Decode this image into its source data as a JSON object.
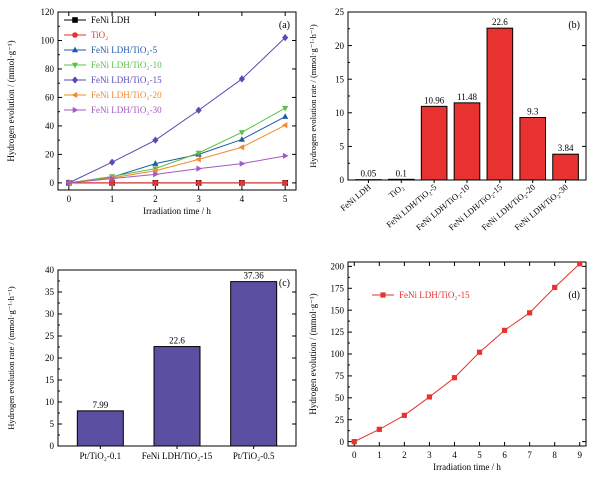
{
  "chart_data": [
    {
      "panel": "(a)",
      "type": "line",
      "xlabel": "Irradiation time / h",
      "ylabel": "Hydrogen evolution / (mmol·g⁻¹)",
      "x": [
        0,
        1,
        2,
        3,
        4,
        5
      ],
      "xticks": [
        "0",
        "1",
        "2",
        "3",
        "4",
        "5"
      ],
      "yticks": [
        "0",
        "20",
        "40",
        "60",
        "80",
        "100",
        "120"
      ],
      "xlim": [
        -0.25,
        5.25
      ],
      "ylim": [
        -5,
        120
      ],
      "legend_position": "top-left",
      "series": [
        {
          "name": "FeNi LDH",
          "marker": "square",
          "color": "#000000",
          "values": [
            0,
            0,
            0,
            0,
            0,
            0
          ]
        },
        {
          "name": "TiO₂",
          "marker": "circle",
          "color": "#e8322f",
          "values": [
            0,
            0,
            0,
            0,
            0,
            0
          ]
        },
        {
          "name": "FeNi LDH/TiO₂-5",
          "marker": "triangle-up",
          "color": "#1d5aa8",
          "values": [
            0,
            4,
            13.5,
            20,
            30.5,
            46.5
          ]
        },
        {
          "name": "FeNi LDH/TiO₂-10",
          "marker": "triangle-down",
          "color": "#5bc14a",
          "values": [
            0,
            4.5,
            10,
            21,
            35.5,
            52.5
          ]
        },
        {
          "name": "FeNi LDH/TiO₂-15",
          "marker": "diamond",
          "color": "#5a4bb3",
          "values": [
            0,
            14.5,
            30,
            51,
            73,
            102
          ]
        },
        {
          "name": "FeNi LDH/TiO₂-20",
          "marker": "triangle-left",
          "color": "#f28a2e",
          "values": [
            0,
            3.5,
            8.5,
            16.5,
            25,
            40.5
          ]
        },
        {
          "name": "FeNi LDH/TiO₂-30",
          "marker": "triangle-right",
          "color": "#a259c4",
          "values": [
            0,
            3,
            6,
            10,
            13.5,
            19
          ]
        }
      ]
    },
    {
      "panel": "(b)",
      "type": "bar",
      "ylabel": "Hydrogen evolution rate / (mmol·g⁻¹·h⁻¹)",
      "categories": [
        "FeNi LDH",
        "TiO₂",
        "FeNi LDH/TiO₂-5",
        "FeNi LDH/TiO₂-10",
        "FeNi LDH/TiO₂-15",
        "FeNi LDH/TiO₂-20",
        "FeNi LDH/TiO₂-30"
      ],
      "values": [
        0.05,
        0.1,
        10.96,
        11.48,
        22.6,
        9.3,
        3.84
      ],
      "labels": [
        "0.05",
        "0.1",
        "10.96",
        "11.48",
        "22.6",
        "9.3",
        "3.84"
      ],
      "yticks": [
        "0",
        "5",
        "10",
        "15",
        "20",
        "25"
      ],
      "ylim": [
        0,
        25
      ],
      "bar_color": "#e8322f"
    },
    {
      "panel": "(c)",
      "type": "bar",
      "ylabel": "Hydrogen evolution rate / (mmol·g⁻¹·h⁻¹)",
      "categories": [
        "Pt/TiO₂-0.1",
        "FeNi LDH/TiO₂-15",
        "Pt/TiO₂-0.5"
      ],
      "values": [
        7.99,
        22.6,
        37.36
      ],
      "labels": [
        "7.99",
        "22.6",
        "37.36"
      ],
      "yticks": [
        "0",
        "5",
        "10",
        "15",
        "20",
        "25",
        "30",
        "35",
        "40"
      ],
      "ylim": [
        0,
        40
      ],
      "bar_color": "#5a4fa0"
    },
    {
      "panel": "(d)",
      "type": "line",
      "xlabel": "Irradiation time / h",
      "ylabel": "Hydrogen evolution / (mmol·g⁻¹)",
      "x": [
        0,
        1,
        2,
        3,
        4,
        5,
        6,
        7,
        8,
        9
      ],
      "xticks": [
        "0",
        "1",
        "2",
        "3",
        "4",
        "5",
        "6",
        "7",
        "8",
        "9"
      ],
      "yticks": [
        "0",
        "25",
        "50",
        "75",
        "100",
        "125",
        "150",
        "175",
        "200"
      ],
      "xlim": [
        -0.25,
        9.25
      ],
      "ylim": [
        -5,
        205
      ],
      "legend_position": "top-left",
      "series": [
        {
          "name": "FeNi LDH/TiO₂-15",
          "marker": "square",
          "color": "#e8322f",
          "values": [
            0,
            14,
            30,
            51,
            73,
            102,
            127,
            147,
            176,
            203
          ]
        }
      ]
    }
  ]
}
